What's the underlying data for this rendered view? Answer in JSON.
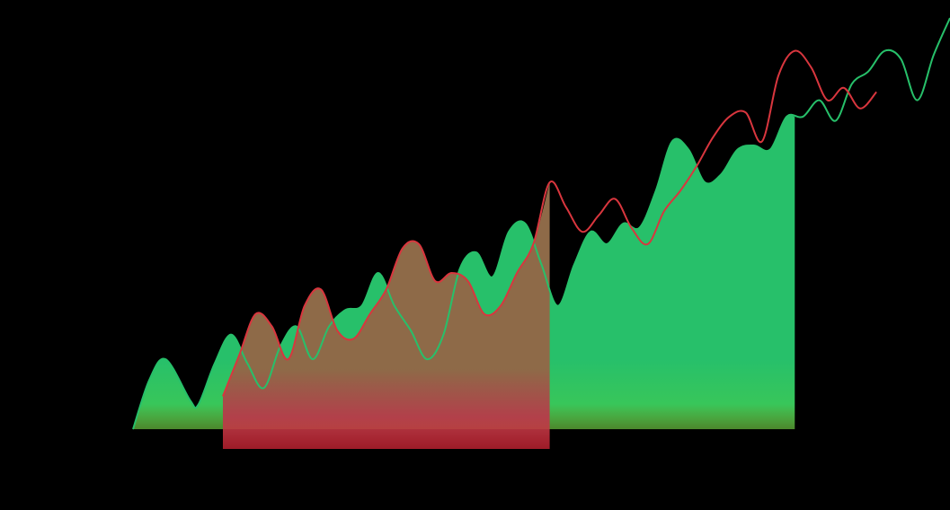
{
  "chart_data": {
    "type": "area",
    "title": "",
    "xlabel": "",
    "ylabel": "",
    "grid": false,
    "legend": "none",
    "xlim": [
      0,
      100
    ],
    "ylim": [
      0,
      100
    ],
    "background": "#000000",
    "series": [
      {
        "color": "#27c06a",
        "fill_range": [
          0,
          81
        ],
        "points": [
          [
            0,
            0
          ],
          [
            2,
            12
          ],
          [
            4,
            17
          ],
          [
            7,
            7
          ],
          [
            8,
            6
          ],
          [
            10,
            16
          ],
          [
            12,
            23
          ],
          [
            14,
            16
          ],
          [
            16,
            10
          ],
          [
            18,
            20
          ],
          [
            20,
            25
          ],
          [
            22,
            17
          ],
          [
            24,
            25
          ],
          [
            26,
            29
          ],
          [
            28,
            30
          ],
          [
            30,
            38
          ],
          [
            32,
            30
          ],
          [
            34,
            24
          ],
          [
            36,
            17
          ],
          [
            38,
            23
          ],
          [
            40,
            39
          ],
          [
            42,
            43
          ],
          [
            44,
            37
          ],
          [
            46,
            48
          ],
          [
            48,
            50
          ],
          [
            50,
            40
          ],
          [
            52,
            30
          ],
          [
            54,
            40
          ],
          [
            56,
            48
          ],
          [
            58,
            45
          ],
          [
            60,
            50
          ],
          [
            62,
            49
          ],
          [
            64,
            58
          ],
          [
            66,
            70
          ],
          [
            68,
            68
          ],
          [
            70,
            60
          ],
          [
            72,
            62
          ],
          [
            74,
            68
          ],
          [
            76,
            69
          ],
          [
            78,
            68
          ],
          [
            80,
            76
          ],
          [
            82,
            76
          ],
          [
            84,
            80
          ],
          [
            86,
            75
          ],
          [
            88,
            84
          ],
          [
            90,
            87
          ],
          [
            92,
            92
          ],
          [
            94,
            90
          ],
          [
            96,
            80
          ],
          [
            98,
            91
          ],
          [
            100,
            100
          ]
        ]
      },
      {
        "color": "#d9363e",
        "fill_color": "#8a6a4a",
        "fill_range": [
          11,
          51
        ],
        "points": [
          [
            11,
            8
          ],
          [
            13,
            18
          ],
          [
            15,
            28
          ],
          [
            17,
            25
          ],
          [
            19,
            17
          ],
          [
            21,
            30
          ],
          [
            23,
            34
          ],
          [
            25,
            24
          ],
          [
            27,
            22
          ],
          [
            29,
            28
          ],
          [
            31,
            34
          ],
          [
            33,
            44
          ],
          [
            35,
            45
          ],
          [
            37,
            36
          ],
          [
            39,
            38
          ],
          [
            41,
            36
          ],
          [
            43,
            28
          ],
          [
            45,
            30
          ],
          [
            47,
            38
          ],
          [
            49,
            45
          ],
          [
            51,
            60
          ],
          [
            53,
            54
          ],
          [
            55,
            48
          ],
          [
            57,
            52
          ],
          [
            59,
            56
          ],
          [
            61,
            49
          ],
          [
            63,
            45
          ],
          [
            65,
            53
          ],
          [
            67,
            58
          ],
          [
            69,
            64
          ],
          [
            71,
            71
          ],
          [
            73,
            76
          ],
          [
            75,
            77
          ],
          [
            77,
            70
          ],
          [
            79,
            86
          ],
          [
            81,
            92
          ],
          [
            83,
            88
          ],
          [
            85,
            80
          ],
          [
            87,
            83
          ],
          [
            89,
            78
          ],
          [
            91,
            82
          ]
        ]
      }
    ]
  }
}
